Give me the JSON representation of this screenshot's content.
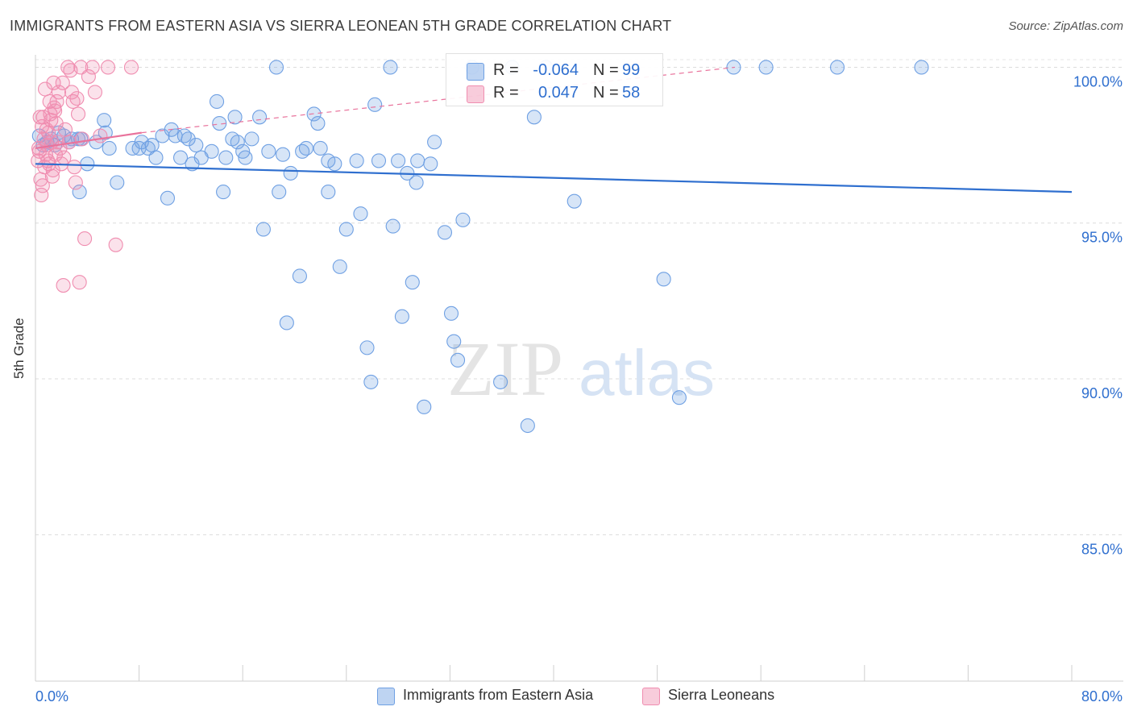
{
  "header": {
    "title": "IMMIGRANTS FROM EASTERN ASIA VS SIERRA LEONEAN 5TH GRADE CORRELATION CHART",
    "source": "Source: ZipAtlas.com"
  },
  "watermark": {
    "zip": "ZIP",
    "atlas": "atlas"
  },
  "stats": {
    "r_label": "R =",
    "n_label": "N =",
    "rows": [
      {
        "r": "-0.064",
        "n": "99",
        "color": "#6fa0e3"
      },
      {
        "r": "0.047",
        "n": "58",
        "color": "#f08db0"
      }
    ]
  },
  "legend": {
    "items": [
      {
        "label": "Immigrants from Eastern Asia",
        "color": "#6fa0e3"
      },
      {
        "label": "Sierra Leoneans",
        "color": "#f08db0"
      }
    ]
  },
  "chart_data": {
    "type": "scatter",
    "title": "IMMIGRANTS FROM EASTERN ASIA VS SIERRA LEONEAN 5TH GRADE CORRELATION CHART",
    "xlabel": "",
    "ylabel": "5th Grade",
    "xlim": [
      0,
      80
    ],
    "ylim": [
      80.3,
      100.4
    ],
    "x_tick_labels": [
      "0.0%",
      "80.0%"
    ],
    "y_ticks": [
      85,
      90,
      95,
      100
    ],
    "y_tick_labels": [
      "85.0%",
      "90.0%",
      "95.0%",
      "100.0%"
    ],
    "grid": "horizontal dashed",
    "legend_position": "bottom",
    "series": [
      {
        "name": "Immigrants from Eastern Asia",
        "color": "#6fa0e3",
        "trend": {
          "x": [
            0,
            80
          ],
          "y": [
            96.9,
            96.0
          ],
          "style": "solid"
        },
        "points": [
          [
            0.3,
            97.8
          ],
          [
            0.6,
            97.5
          ],
          [
            0.9,
            97.6
          ],
          [
            1.2,
            97.7
          ],
          [
            1.5,
            97.5
          ],
          [
            1.8,
            97.9
          ],
          [
            2.2,
            97.8
          ],
          [
            2.8,
            97.7
          ],
          [
            3.3,
            97.7
          ],
          [
            3.5,
            97.7
          ],
          [
            4.0,
            96.9
          ],
          [
            5.4,
            97.9
          ],
          [
            3.4,
            96.0
          ],
          [
            5.3,
            98.3
          ],
          [
            5.7,
            97.4
          ],
          [
            6.3,
            96.3
          ],
          [
            8.2,
            97.6
          ],
          [
            8.0,
            97.4
          ],
          [
            8.7,
            97.4
          ],
          [
            9.3,
            97.1
          ],
          [
            9.8,
            97.8
          ],
          [
            10.2,
            95.8
          ],
          [
            10.5,
            98.0
          ],
          [
            10.8,
            97.8
          ],
          [
            11.2,
            97.1
          ],
          [
            11.8,
            97.7
          ],
          [
            12.1,
            96.9
          ],
          [
            12.4,
            97.5
          ],
          [
            12.8,
            97.1
          ],
          [
            13.6,
            97.3
          ],
          [
            14.2,
            98.2
          ],
          [
            14.5,
            96.0
          ],
          [
            14.0,
            98.9
          ],
          [
            14.7,
            97.1
          ],
          [
            15.4,
            98.4
          ],
          [
            15.2,
            97.7
          ],
          [
            15.6,
            97.6
          ],
          [
            16.0,
            97.3
          ],
          [
            16.2,
            97.1
          ],
          [
            17.3,
            98.4
          ],
          [
            17.6,
            94.8
          ],
          [
            18.0,
            97.3
          ],
          [
            18.6,
            100.0
          ],
          [
            18.8,
            96.0
          ],
          [
            19.1,
            97.2
          ],
          [
            19.7,
            96.6
          ],
          [
            20.4,
            93.3
          ],
          [
            20.6,
            97.3
          ],
          [
            20.9,
            97.4
          ],
          [
            19.4,
            91.8
          ],
          [
            21.5,
            98.5
          ],
          [
            21.8,
            98.2
          ],
          [
            22.6,
            97.0
          ],
          [
            22.6,
            96.0
          ],
          [
            23.1,
            96.9
          ],
          [
            23.5,
            93.6
          ],
          [
            24.0,
            94.8
          ],
          [
            24.8,
            97.0
          ],
          [
            25.1,
            95.3
          ],
          [
            25.6,
            91.0
          ],
          [
            25.9,
            89.9
          ],
          [
            26.2,
            98.8
          ],
          [
            27.4,
            100.0
          ],
          [
            27.6,
            94.9
          ],
          [
            28.0,
            97.0
          ],
          [
            28.3,
            92.0
          ],
          [
            28.7,
            96.6
          ],
          [
            29.1,
            93.1
          ],
          [
            29.4,
            96.3
          ],
          [
            29.5,
            97.0
          ],
          [
            30.0,
            89.1
          ],
          [
            30.8,
            97.6
          ],
          [
            31.6,
            94.7
          ],
          [
            32.1,
            92.1
          ],
          [
            32.3,
            91.2
          ],
          [
            32.6,
            90.6
          ],
          [
            33.0,
            95.1
          ],
          [
            33.7,
            100.0
          ],
          [
            35.9,
            89.9
          ],
          [
            36.8,
            100.0
          ],
          [
            38.0,
            88.5
          ],
          [
            38.5,
            98.4
          ],
          [
            39.4,
            100.0
          ],
          [
            41.6,
            95.7
          ],
          [
            48.5,
            93.2
          ],
          [
            49.7,
            89.4
          ],
          [
            53.9,
            100.0
          ],
          [
            56.4,
            100.0
          ],
          [
            61.9,
            100.0
          ],
          [
            68.4,
            100.0
          ],
          [
            2.6,
            97.6
          ],
          [
            4.7,
            97.6
          ],
          [
            7.5,
            97.4
          ],
          [
            9.0,
            97.5
          ],
          [
            16.7,
            97.7
          ],
          [
            22.0,
            97.4
          ],
          [
            26.5,
            97.0
          ],
          [
            30.5,
            96.9
          ],
          [
            11.5,
            97.8
          ]
        ]
      },
      {
        "name": "Sierra Leoneans",
        "color": "#f08db0",
        "trend_solid": {
          "x": [
            0,
            8.2
          ],
          "y": [
            97.4,
            97.9
          ]
        },
        "trend_dashed": {
          "x": [
            8.2,
            54.0
          ],
          "y": [
            97.9,
            100.0
          ]
        },
        "points": [
          [
            0.2,
            97.0
          ],
          [
            0.3,
            97.3
          ],
          [
            0.4,
            96.4
          ],
          [
            0.5,
            98.1
          ],
          [
            0.6,
            98.4
          ],
          [
            0.7,
            96.8
          ],
          [
            0.8,
            97.2
          ],
          [
            0.9,
            97.5
          ],
          [
            1.0,
            97.9
          ],
          [
            1.1,
            98.9
          ],
          [
            1.2,
            98.3
          ],
          [
            1.3,
            96.5
          ],
          [
            1.4,
            99.5
          ],
          [
            1.5,
            98.6
          ],
          [
            1.6,
            98.2
          ],
          [
            1.7,
            97.6
          ],
          [
            1.8,
            99.2
          ],
          [
            1.9,
            97.4
          ],
          [
            2.0,
            96.9
          ],
          [
            2.1,
            99.5
          ],
          [
            2.2,
            97.1
          ],
          [
            2.3,
            98.0
          ],
          [
            2.5,
            100.0
          ],
          [
            2.6,
            97.6
          ],
          [
            2.7,
            99.9
          ],
          [
            2.8,
            99.2
          ],
          [
            2.9,
            98.9
          ],
          [
            3.0,
            96.8
          ],
          [
            3.1,
            96.3
          ],
          [
            3.2,
            99.0
          ],
          [
            3.3,
            98.5
          ],
          [
            3.4,
            93.1
          ],
          [
            3.5,
            100.0
          ],
          [
            3.6,
            97.7
          ],
          [
            3.8,
            94.5
          ],
          [
            4.1,
            99.7
          ],
          [
            4.4,
            100.0
          ],
          [
            4.6,
            99.2
          ],
          [
            5.0,
            97.8
          ],
          [
            5.6,
            100.0
          ],
          [
            6.2,
            94.3
          ],
          [
            7.4,
            100.0
          ],
          [
            0.25,
            97.4
          ],
          [
            0.35,
            98.4
          ],
          [
            0.45,
            95.9
          ],
          [
            0.55,
            96.2
          ],
          [
            0.65,
            97.7
          ],
          [
            0.75,
            99.3
          ],
          [
            0.85,
            98.0
          ],
          [
            0.95,
            97.0
          ],
          [
            1.05,
            96.9
          ],
          [
            1.15,
            98.5
          ],
          [
            1.25,
            97.6
          ],
          [
            1.35,
            96.7
          ],
          [
            1.45,
            98.7
          ],
          [
            1.55,
            97.2
          ],
          [
            1.65,
            98.9
          ],
          [
            2.15,
            93.0
          ]
        ]
      }
    ]
  }
}
